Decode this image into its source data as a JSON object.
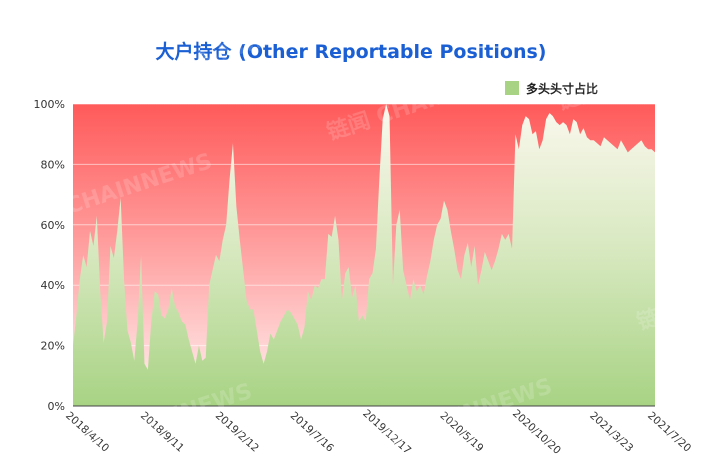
{
  "chart_data": {
    "type": "area",
    "title": "大户持仓 (Other Reportable Positions)",
    "legend_position": "top-right",
    "series": [
      {
        "name": "多头头寸占比",
        "color": "#a8d384"
      }
    ],
    "background_gradient": {
      "top": "#ff5a5a",
      "mid": "#ff9c9c",
      "bottom": "#fff4f4"
    },
    "ylim": [
      0,
      100
    ],
    "y_ticks": [
      "0%",
      "20%",
      "40%",
      "60%",
      "80%",
      "100%"
    ],
    "y_tick_values": [
      0,
      20,
      40,
      60,
      80,
      100
    ],
    "x_ticks": [
      "2018/4/10",
      "2018/9/11",
      "2019/2/12",
      "2019/7/16",
      "2019/12/17",
      "2020/5/19",
      "2020/10/20",
      "2021/3/23",
      "2021/7/20"
    ],
    "x_tick_indices": [
      0,
      22,
      44,
      66,
      88,
      110,
      132,
      154,
      171
    ],
    "grid": true,
    "values": [
      20,
      30,
      42,
      50,
      46,
      58,
      53,
      63,
      38,
      21,
      28,
      53,
      49,
      58,
      69,
      42,
      25,
      21,
      15,
      28,
      50,
      14,
      12,
      28,
      38,
      37,
      30,
      29,
      32,
      39,
      33,
      31,
      28,
      27,
      22,
      18,
      14,
      20,
      15,
      16,
      40,
      45,
      50,
      48,
      55,
      60,
      75,
      87,
      66,
      55,
      45,
      35,
      32,
      32,
      25,
      18,
      14,
      18,
      24,
      22,
      25,
      28,
      30,
      32,
      31,
      29,
      27,
      22,
      26,
      38,
      35,
      40,
      39,
      42,
      42,
      57,
      56,
      63,
      55,
      35,
      44,
      46,
      36,
      40,
      28,
      30,
      28,
      42,
      44,
      52,
      75,
      95,
      100,
      96,
      40,
      60,
      65,
      45,
      40,
      35,
      42,
      38,
      40,
      37,
      43,
      48,
      55,
      60,
      62,
      68,
      65,
      58,
      52,
      45,
      42,
      50,
      54,
      46,
      53,
      40,
      45,
      51,
      48,
      45,
      48,
      52,
      57,
      55,
      57,
      52,
      90,
      85,
      93,
      96,
      95,
      90,
      91,
      85,
      88,
      95,
      97,
      96,
      94,
      93,
      94,
      93,
      90,
      95,
      94,
      90,
      92,
      89,
      88,
      88,
      87,
      86,
      89,
      88,
      87,
      86,
      85,
      88,
      86,
      84,
      85,
      86,
      87,
      88,
      86,
      85,
      85,
      84
    ]
  },
  "watermark": "链闻 CHAINNEWS"
}
